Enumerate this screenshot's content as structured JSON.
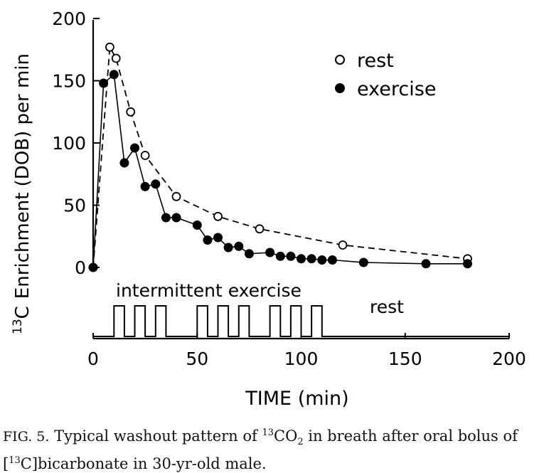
{
  "chart_data": {
    "type": "scatter",
    "xlabel": "TIME (min)",
    "ylabel": "Enrichment (DOB) per min",
    "ylabel_superscript": "13",
    "ylabel_prefix": "C",
    "xlim": [
      0,
      200
    ],
    "ylim": [
      0,
      200
    ],
    "xticks": [
      "0",
      "50",
      "100",
      "150",
      "200"
    ],
    "yticks": [
      "0",
      "50",
      "100",
      "150",
      "200"
    ],
    "grid": false,
    "legend_placement": "top-right",
    "series": [
      {
        "name": "rest",
        "marker": "open-circle",
        "line": "dashed",
        "x": [
          0,
          8,
          11,
          18,
          25,
          40,
          60,
          80,
          120,
          180
        ],
        "y": [
          0,
          177,
          168,
          125,
          90,
          57,
          41,
          31,
          18,
          7
        ]
      },
      {
        "name": "exercise",
        "marker": "filled-circle",
        "line": "solid",
        "x": [
          0,
          5,
          10,
          15,
          20,
          25,
          30,
          35,
          40,
          50,
          55,
          60,
          65,
          70,
          75,
          85,
          90,
          95,
          100,
          105,
          110,
          115,
          130,
          160,
          180
        ],
        "y": [
          0,
          148,
          155,
          84,
          96,
          65,
          67,
          40,
          40,
          34,
          22,
          24,
          16,
          17,
          11,
          12,
          9,
          9,
          7,
          7,
          6,
          6,
          4,
          3,
          3
        ]
      }
    ],
    "schedule": {
      "label": "intermittent exercise",
      "rest_label": "rest",
      "bouts_min": [
        [
          10,
          15
        ],
        [
          20,
          25
        ],
        [
          30,
          35
        ],
        [
          50,
          55
        ],
        [
          60,
          65
        ],
        [
          70,
          75
        ],
        [
          85,
          90
        ],
        [
          95,
          100
        ],
        [
          105,
          110
        ]
      ]
    }
  },
  "caption": {
    "fig_label": "FIG. 5.",
    "text_1": " Typical washout pattern of ",
    "sup_1": "13",
    "text_2": "CO",
    "sub_1": "2",
    "text_3": " in breath after oral bolus of [",
    "sup_2": "13",
    "text_4": "C]bicarbonate in 30-yr-old male."
  }
}
